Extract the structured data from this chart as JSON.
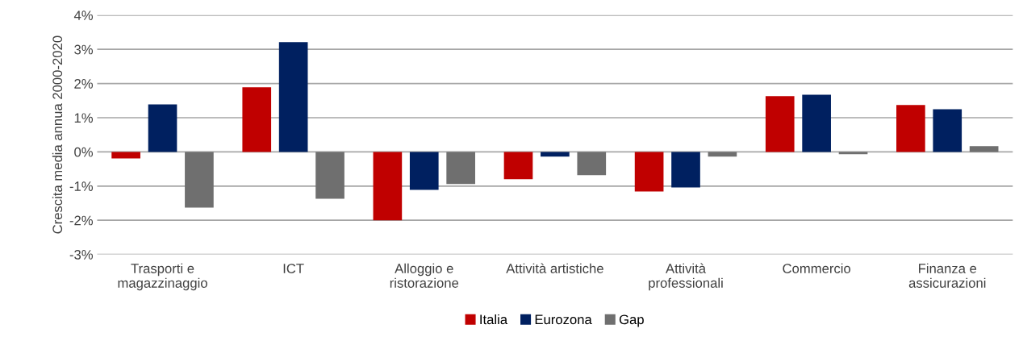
{
  "chart_data": {
    "type": "bar",
    "ylabel": "Crescita media annua 2000-2020",
    "categories": [
      "Trasporti e\nmagazzinaggio",
      "ICT",
      "Alloggio e\nristorazione",
      "Attività artistiche",
      "Attività\nprofessionali",
      "Commercio",
      "Finanza e\nassicurazioni"
    ],
    "series": [
      {
        "name": "Italia",
        "color": "#c00000",
        "values": [
          -0.19,
          1.89,
          -2.0,
          -0.8,
          -1.16,
          1.63,
          1.37
        ]
      },
      {
        "name": "Eurozona",
        "color": "#002060",
        "values": [
          1.39,
          3.21,
          -1.11,
          -0.14,
          -1.04,
          1.67,
          1.25
        ]
      },
      {
        "name": "Gap",
        "color": "#6f6f6f",
        "values": [
          -1.63,
          -1.37,
          -0.94,
          -0.68,
          -0.14,
          -0.07,
          0.17
        ]
      }
    ],
    "ylim": [
      -3,
      4
    ],
    "yticks": [
      {
        "value": -3,
        "label": "-3%"
      },
      {
        "value": -2,
        "label": "-2%"
      },
      {
        "value": -1,
        "label": "-1%"
      },
      {
        "value": 0,
        "label": "0%"
      },
      {
        "value": 1,
        "label": "1%"
      },
      {
        "value": 2,
        "label": "2%"
      },
      {
        "value": 3,
        "label": "3%"
      },
      {
        "value": 4,
        "label": "4%"
      }
    ],
    "grid": "y",
    "legend": "bottom"
  }
}
